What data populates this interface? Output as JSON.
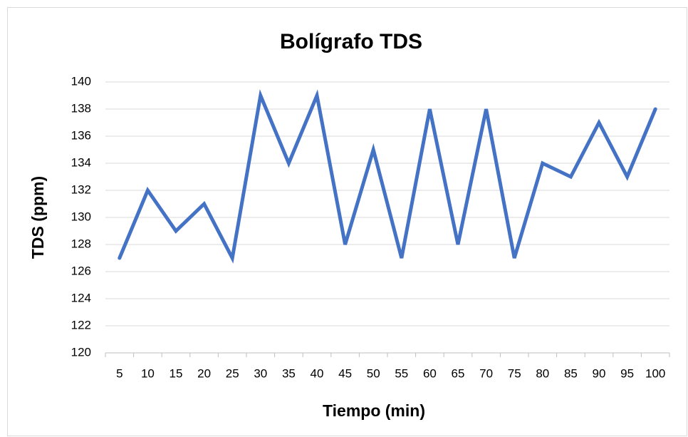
{
  "chart_data": {
    "type": "line",
    "title": "Bolígrafo TDS",
    "x_label": "Tiempo (min)",
    "y_label": "TDS (ppm)",
    "categories": [
      "5",
      "10",
      "15",
      "20",
      "25",
      "30",
      "35",
      "40",
      "45",
      "50",
      "55",
      "60",
      "65",
      "70",
      "75",
      "80",
      "85",
      "90",
      "95",
      "100"
    ],
    "series": [
      {
        "name": "TDS",
        "color": "#4472c4",
        "values": [
          127,
          132,
          129,
          131,
          127,
          139,
          134,
          139,
          128,
          135,
          127,
          138,
          128,
          138,
          127,
          134,
          133,
          137,
          133,
          138
        ]
      }
    ],
    "ylim": [
      120,
      140
    ],
    "yticks": [
      120,
      122,
      124,
      126,
      128,
      130,
      132,
      134,
      136,
      138,
      140
    ],
    "grid": true
  }
}
